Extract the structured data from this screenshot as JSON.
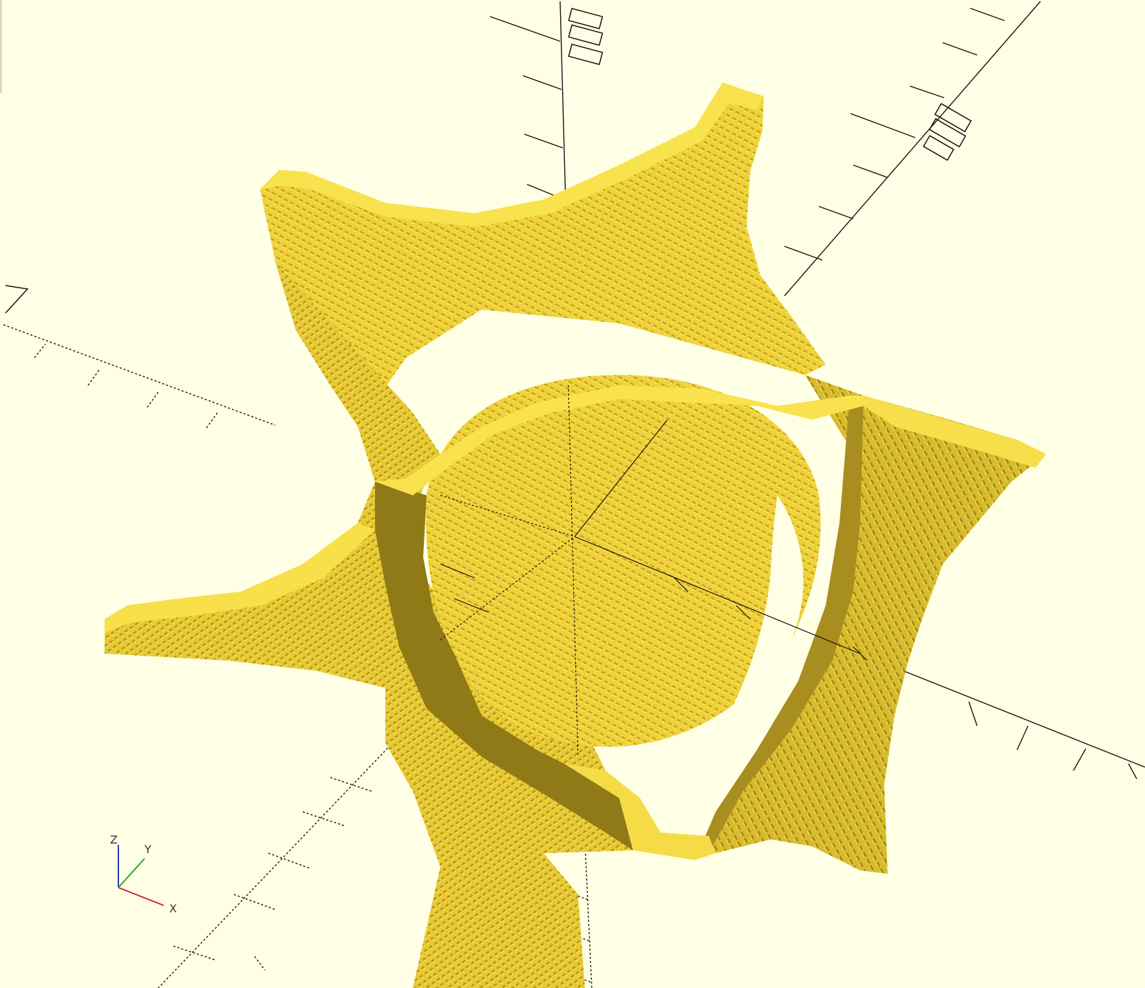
{
  "app": {
    "title": ""
  },
  "viewport": {
    "background": "#ffffe5",
    "model_color": "#f0d43a",
    "model_light": "#f8e24e",
    "model_shade": "#c9aa27",
    "model_dark": "#8c7a15",
    "axis_color": "#111111"
  },
  "axis_gizmo": {
    "z_label": "Z",
    "y_label": "Y",
    "x_label": "X",
    "x_color": "#cc2222",
    "y_color": "#22aa22",
    "z_color": "#2233cc"
  },
  "icons": [
    "axis-gizmo-icon"
  ]
}
